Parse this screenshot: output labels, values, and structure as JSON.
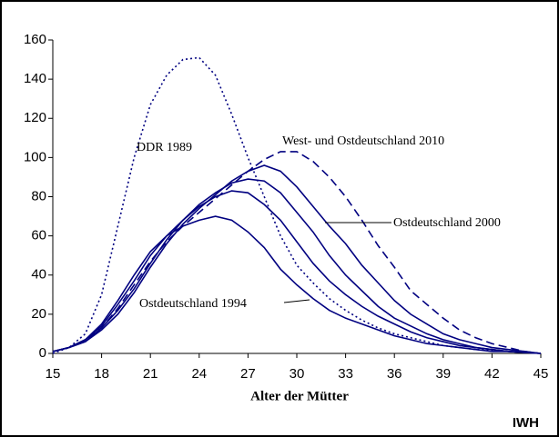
{
  "chart_data": {
    "type": "line",
    "x_label": "Alter der Mütter",
    "source": "IWH",
    "x": [
      15,
      16,
      17,
      18,
      19,
      20,
      21,
      22,
      23,
      24,
      25,
      26,
      27,
      28,
      29,
      30,
      31,
      32,
      33,
      34,
      35,
      36,
      37,
      38,
      39,
      40,
      41,
      42,
      43,
      44,
      45
    ],
    "xlim": [
      15,
      45
    ],
    "xticks": [
      15,
      18,
      21,
      24,
      27,
      30,
      33,
      36,
      39,
      42,
      45
    ],
    "ylim": [
      0,
      160
    ],
    "yticks": [
      0,
      20,
      40,
      60,
      80,
      100,
      120,
      140,
      160
    ],
    "series": [
      {
        "name": "DDR 1989",
        "color": "#000080",
        "line_style": "dotted",
        "values": [
          0,
          3,
          10,
          30,
          65,
          100,
          127,
          142,
          150,
          151,
          142,
          122,
          100,
          80,
          60,
          45,
          36,
          28,
          22,
          17,
          13,
          10,
          8,
          6,
          4,
          3,
          2,
          1.5,
          1,
          0.5,
          0
        ]
      },
      {
        "name": "West- und Ostdeutschland 2010",
        "color": "#000080",
        "line_style": "dashed",
        "values": [
          1,
          3,
          7,
          13,
          23,
          35,
          47,
          57,
          65,
          72,
          79,
          86,
          93,
          99,
          103,
          103,
          98,
          90,
          80,
          68,
          55,
          44,
          32,
          25,
          18,
          12,
          8,
          5,
          3,
          1,
          0
        ]
      },
      {
        "name": "Ostdeutschland 2000",
        "color": "#000080",
        "line_style": "solid",
        "values": [
          1,
          3,
          6,
          12,
          20,
          31,
          44,
          56,
          66,
          74,
          81,
          88,
          93,
          96,
          93,
          85,
          75,
          65,
          56,
          45,
          36,
          27,
          20,
          15,
          10,
          7,
          5,
          3,
          2,
          1,
          0
        ]
      },
      {
        "color": "#000080",
        "line_style": "solid",
        "values": [
          1,
          3,
          6,
          13,
          22,
          33,
          46,
          58,
          68,
          76,
          82,
          87,
          89,
          88,
          82,
          72,
          62,
          50,
          40,
          32,
          24,
          18,
          14,
          10,
          7,
          5,
          3,
          2,
          1,
          0.5,
          0
        ]
      },
      {
        "color": "#000080",
        "line_style": "solid",
        "values": [
          1,
          3,
          7,
          14,
          25,
          37,
          50,
          60,
          68,
          75,
          80,
          83,
          82,
          76,
          68,
          57,
          46,
          37,
          30,
          24,
          19,
          15,
          11,
          8,
          6,
          4,
          3,
          2,
          1,
          0.5,
          0
        ]
      },
      {
        "name": "Ostdeutschland 1994",
        "color": "#000080",
        "line_style": "solid",
        "values": [
          1,
          3,
          7,
          15,
          27,
          40,
          52,
          60,
          65,
          68,
          70,
          68,
          62,
          54,
          43,
          35,
          28,
          22,
          18,
          15,
          12,
          9,
          7,
          5,
          4,
          3,
          2,
          1,
          1,
          0.5,
          0
        ]
      }
    ]
  }
}
